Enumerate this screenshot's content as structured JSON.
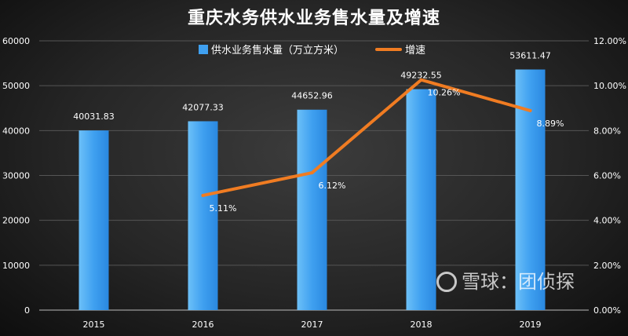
{
  "chart_data": {
    "type": "bar",
    "title": "重庆水务供水业务售水量及增速",
    "categories": [
      "2015",
      "2016",
      "2017",
      "2018",
      "2019"
    ],
    "series": [
      {
        "name": "供水业务售水量（万立方米）",
        "type": "bar",
        "axis": "left",
        "values": [
          40031.83,
          42077.33,
          44652.96,
          49232.55,
          53611.47
        ],
        "labels": [
          "40031.83",
          "42077.33",
          "44652.96",
          "49232.55",
          "53611.47"
        ],
        "color": "#3fa0f0"
      },
      {
        "name": "增速",
        "type": "line",
        "axis": "right",
        "values": [
          null,
          5.11,
          6.12,
          10.26,
          8.89
        ],
        "labels": [
          "",
          "5.11%",
          "6.12%",
          "10.26%",
          "8.89%"
        ],
        "color": "#f07c22"
      }
    ],
    "ylim": [
      0,
      60000
    ],
    "y_ticks": [
      "0",
      "10000",
      "20000",
      "30000",
      "40000",
      "50000",
      "60000"
    ],
    "y2lim": [
      0,
      12
    ],
    "y2_ticks": [
      "0.00%",
      "2.00%",
      "4.00%",
      "6.00%",
      "8.00%",
      "10.00%",
      "12.00%"
    ],
    "grid": true,
    "legend": "top-center"
  },
  "watermark": "雪球：团侦探"
}
